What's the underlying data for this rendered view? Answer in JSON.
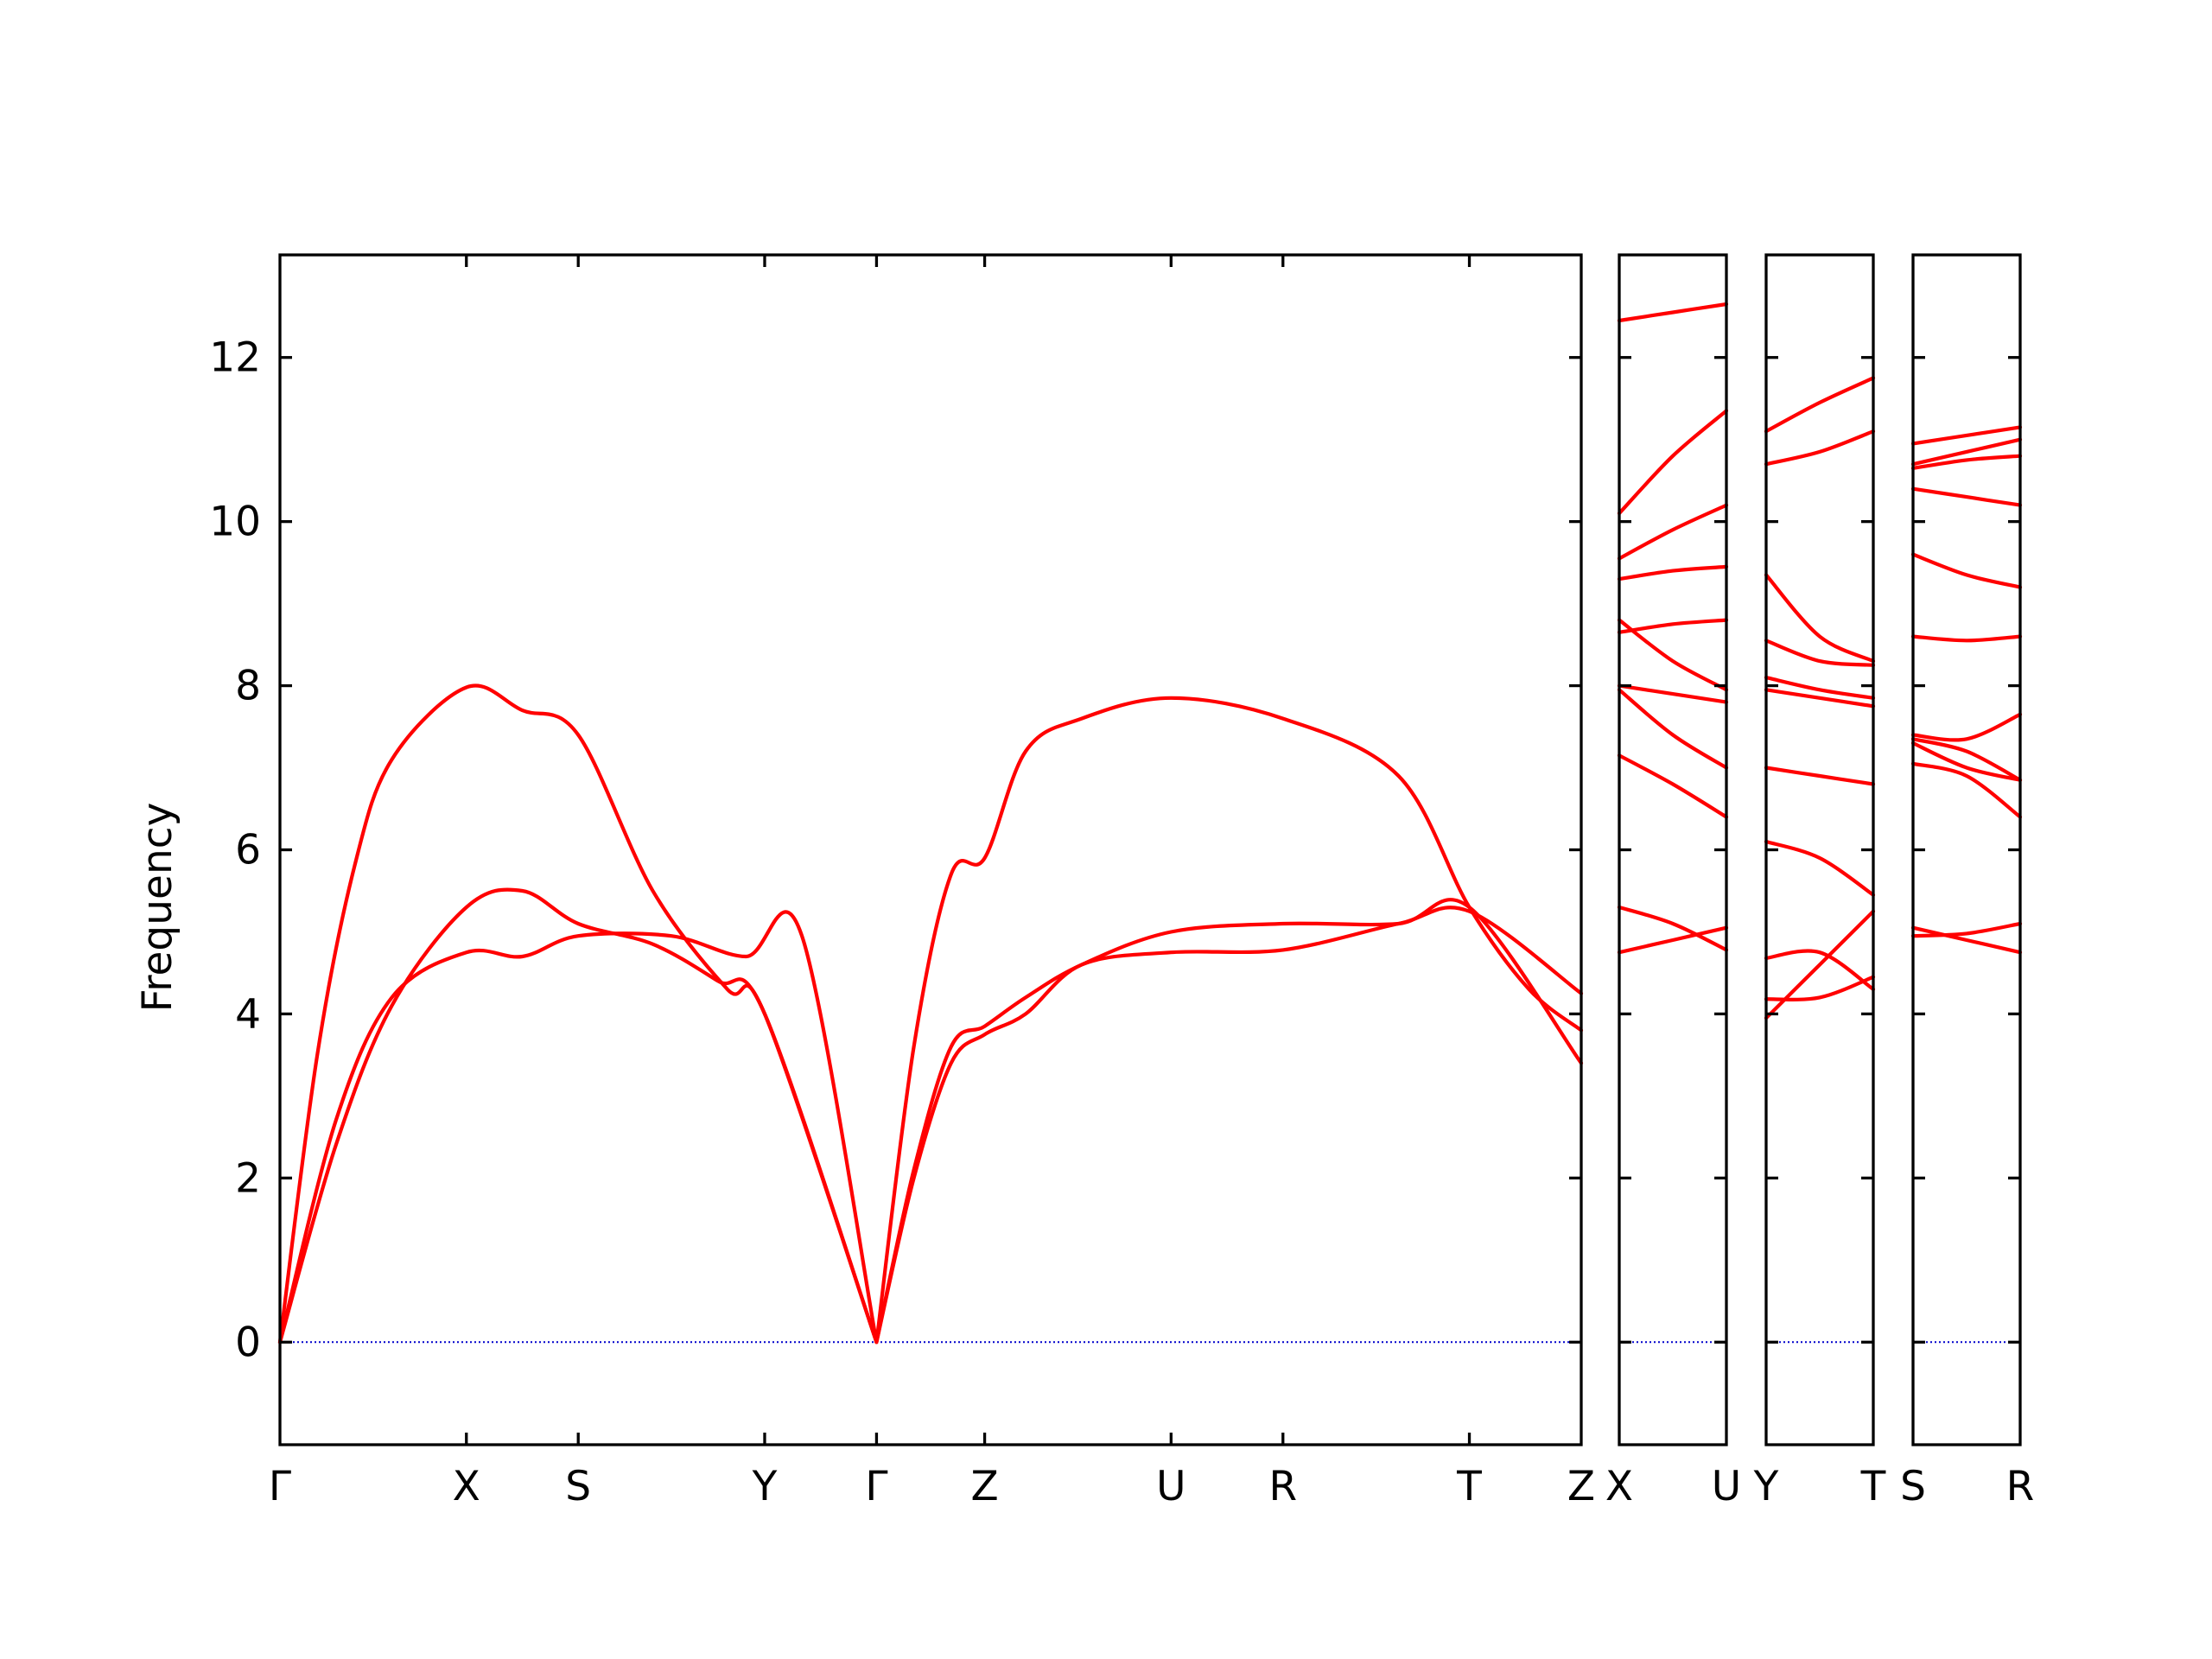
{
  "chart_data": {
    "type": "line",
    "ylabel": "Frequency",
    "ylim": [
      -1.25,
      13.25
    ],
    "yticks": [
      0,
      2,
      4,
      6,
      8,
      10,
      12
    ],
    "grid": false,
    "legend": "none",
    "colors": {
      "band": "#ff0000",
      "zero_line": "#0000cc",
      "frame": "#000000"
    },
    "panels": [
      {
        "id": "main",
        "kpoints": [
          "Γ",
          "X",
          "S",
          "Y",
          "Γ",
          "Z",
          "U",
          "R",
          "T",
          "Z"
        ],
        "kpos": [
          0,
          1,
          1.6,
          2.6,
          3.2,
          3.78,
          4.78,
          5.38,
          6.38,
          6.98
        ],
        "bands": [
          {
            "x": [
              0,
              0.3,
              0.6,
              1.0,
              1.3,
              1.6,
              2.1,
              2.5,
              2.8,
              3.2
            ],
            "y": [
              0,
              2.7,
              4.2,
              4.75,
              4.7,
              4.95,
              4.95,
              4.7,
              4.95,
              0
            ]
          },
          {
            "x": [
              0,
              0.3,
              0.6,
              1.0,
              1.3,
              1.6,
              2.0,
              2.35,
              2.6,
              3.2
            ],
            "y": [
              0,
              2.4,
              4.1,
              5.3,
              5.5,
              5.1,
              4.85,
              4.4,
              4.0,
              0
            ]
          },
          {
            "x": [
              0,
              0.2,
              0.4,
              0.6,
              1.0,
              1.3,
              1.6,
              2.0,
              2.4,
              2.6,
              3.2
            ],
            "y": [
              0,
              3.5,
              5.8,
              7.1,
              7.98,
              7.7,
              7.4,
              5.5,
              4.3,
              4.0,
              0
            ]
          },
          {
            "x": [
              3.2,
              3.4,
              3.6,
              3.78,
              4.0,
              4.3,
              4.78,
              5.38,
              6.0,
              6.38,
              6.98
            ],
            "y": [
              0,
              2.0,
              3.4,
              3.75,
              4.0,
              4.6,
              4.75,
              4.78,
              5.1,
              5.25,
              4.25
            ]
          },
          {
            "x": [
              3.2,
              3.4,
              3.6,
              3.78,
              4.0,
              4.3,
              4.78,
              5.38,
              6.0,
              6.38,
              6.98
            ],
            "y": [
              0,
              2.1,
              3.6,
              3.85,
              4.2,
              4.6,
              5.0,
              5.1,
              5.1,
              5.3,
              3.4
            ]
          },
          {
            "x": [
              3.2,
              3.4,
              3.6,
              3.78,
              4.0,
              4.3,
              4.78,
              5.38,
              6.0,
              6.38,
              6.7,
              6.98
            ],
            "y": [
              0,
              3.6,
              5.7,
              5.9,
              7.2,
              7.6,
              7.85,
              7.6,
              6.9,
              5.3,
              4.3,
              3.8
            ]
          }
        ]
      },
      {
        "id": "p2",
        "kpoints": [
          "X",
          "U"
        ],
        "kpos": [
          0,
          1
        ],
        "bands": [
          {
            "x": [
              0,
              0.5,
              1
            ],
            "y": [
              4.75,
              4.9,
              5.05
            ]
          },
          {
            "x": [
              0,
              0.5,
              1
            ],
            "y": [
              5.3,
              5.1,
              4.78
            ]
          },
          {
            "x": [
              0,
              0.5,
              1
            ],
            "y": [
              7.15,
              6.8,
              6.4
            ]
          },
          {
            "x": [
              0,
              0.5,
              1
            ],
            "y": [
              7.95,
              7.4,
              7.0
            ]
          },
          {
            "x": [
              0,
              0.5,
              1
            ],
            "y": [
              8.0,
              7.9,
              7.8
            ]
          },
          {
            "x": [
              0,
              0.5,
              1
            ],
            "y": [
              8.65,
              8.75,
              8.8
            ]
          },
          {
            "x": [
              0,
              0.5,
              1
            ],
            "y": [
              8.8,
              8.3,
              7.95
            ]
          },
          {
            "x": [
              0,
              0.5,
              1
            ],
            "y": [
              9.3,
              9.4,
              9.45
            ]
          },
          {
            "x": [
              0,
              0.5,
              1
            ],
            "y": [
              9.55,
              9.9,
              10.2
            ]
          },
          {
            "x": [
              0,
              0.5,
              1
            ],
            "y": [
              10.1,
              10.8,
              11.35
            ]
          },
          {
            "x": [
              0,
              0.5,
              1
            ],
            "y": [
              12.45,
              12.55,
              12.65
            ]
          }
        ]
      },
      {
        "id": "p3",
        "kpoints": [
          "Y",
          "T"
        ],
        "kpos": [
          0,
          1
        ],
        "bands": [
          {
            "x": [
              0,
              0.5,
              1
            ],
            "y": [
              3.95,
              4.6,
              5.25
            ]
          },
          {
            "x": [
              0,
              0.5,
              1
            ],
            "y": [
              4.18,
              4.2,
              4.45
            ]
          },
          {
            "x": [
              0,
              0.5,
              1
            ],
            "y": [
              4.68,
              4.75,
              4.3
            ]
          },
          {
            "x": [
              0,
              0.5,
              1
            ],
            "y": [
              6.1,
              5.9,
              5.45
            ]
          },
          {
            "x": [
              0,
              0.5,
              1
            ],
            "y": [
              7.0,
              6.9,
              6.8
            ]
          },
          {
            "x": [
              0,
              0.5,
              1
            ],
            "y": [
              7.95,
              7.85,
              7.75
            ]
          },
          {
            "x": [
              0,
              0.5,
              1
            ],
            "y": [
              8.1,
              7.95,
              7.85
            ]
          },
          {
            "x": [
              0,
              0.5,
              1
            ],
            "y": [
              8.55,
              8.3,
              8.25
            ]
          },
          {
            "x": [
              0,
              0.5,
              1
            ],
            "y": [
              9.35,
              8.6,
              8.3
            ]
          },
          {
            "x": [
              0,
              0.5,
              1
            ],
            "y": [
              10.7,
              10.85,
              11.1
            ]
          },
          {
            "x": [
              0,
              0.5,
              1
            ],
            "y": [
              11.1,
              11.45,
              11.75
            ]
          }
        ]
      },
      {
        "id": "p4",
        "kpoints": [
          "S",
          "R"
        ],
        "kpos": [
          0,
          1
        ],
        "bands": [
          {
            "x": [
              0,
              0.5,
              1
            ],
            "y": [
              4.95,
              4.98,
              5.1
            ]
          },
          {
            "x": [
              0,
              0.5,
              1
            ],
            "y": [
              5.05,
              4.9,
              4.75
            ]
          },
          {
            "x": [
              0,
              0.5,
              1
            ],
            "y": [
              7.05,
              6.9,
              6.4
            ]
          },
          {
            "x": [
              0,
              0.5,
              1
            ],
            "y": [
              7.3,
              7.0,
              6.85
            ]
          },
          {
            "x": [
              0,
              0.5,
              1
            ],
            "y": [
              7.35,
              7.2,
              6.85
            ]
          },
          {
            "x": [
              0,
              0.5,
              1
            ],
            "y": [
              7.4,
              7.35,
              7.65
            ]
          },
          {
            "x": [
              0,
              0.5,
              1
            ],
            "y": [
              8.6,
              8.55,
              8.6
            ]
          },
          {
            "x": [
              0,
              0.5,
              1
            ],
            "y": [
              9.6,
              9.35,
              9.2
            ]
          },
          {
            "x": [
              0,
              0.5,
              1
            ],
            "y": [
              10.4,
              10.3,
              10.2
            ]
          },
          {
            "x": [
              0,
              0.5,
              1
            ],
            "y": [
              10.65,
              10.75,
              10.8
            ]
          },
          {
            "x": [
              0,
              0.5,
              1
            ],
            "y": [
              10.7,
              10.85,
              11.0
            ]
          },
          {
            "x": [
              0,
              0.5,
              1
            ],
            "y": [
              10.95,
              11.05,
              11.15
            ]
          }
        ]
      }
    ]
  }
}
